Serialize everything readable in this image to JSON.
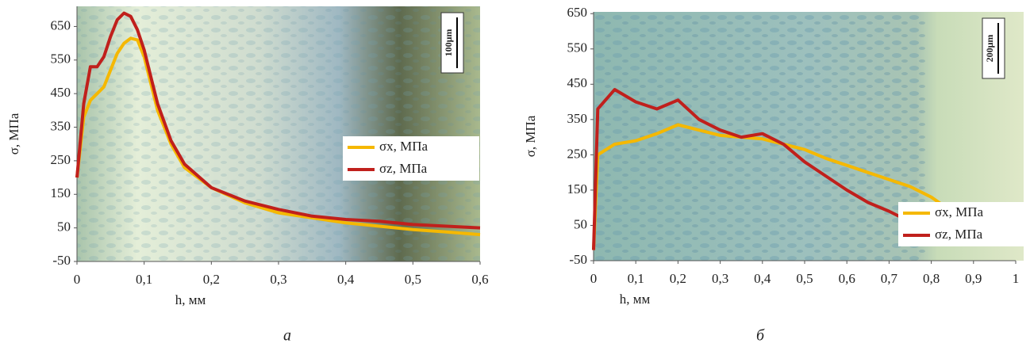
{
  "chart_data": [
    {
      "type": "line",
      "caption": "а",
      "xlabel": "h, мм",
      "ylabel": "σ, МПа",
      "annotation": "100μm",
      "x": [
        0,
        0.01,
        0.02,
        0.03,
        0.04,
        0.05,
        0.06,
        0.07,
        0.08,
        0.09,
        0.1,
        0.11,
        0.12,
        0.14,
        0.16,
        0.2,
        0.25,
        0.3,
        0.35,
        0.4,
        0.45,
        0.5,
        0.55,
        0.6
      ],
      "series": [
        {
          "name": "σx, МПа",
          "color": "#f5b800",
          "values": [
            200,
            380,
            430,
            450,
            470,
            520,
            570,
            600,
            615,
            610,
            560,
            480,
            400,
            300,
            230,
            170,
            125,
            95,
            80,
            65,
            55,
            45,
            38,
            30
          ]
        },
        {
          "name": "σz, МПа",
          "color": "#c0201c",
          "values": [
            200,
            420,
            530,
            530,
            560,
            620,
            670,
            690,
            680,
            640,
            580,
            500,
            420,
            310,
            240,
            170,
            130,
            105,
            85,
            75,
            70,
            60,
            55,
            50
          ]
        }
      ],
      "xlim": [
        0,
        0.6
      ],
      "ylim": [
        -50,
        710
      ],
      "xticks": [
        0,
        {
          "value": 0.1,
          "label": "0,1"
        },
        {
          "value": 0.2,
          "label": "0,2"
        },
        {
          "value": 0.3,
          "label": "0,3"
        },
        {
          "value": 0.4,
          "label": "0,4"
        },
        {
          "value": 0.5,
          "label": "0,5"
        },
        {
          "value": 0.6,
          "label": "0,6"
        }
      ],
      "yticks": [
        -50,
        50,
        150,
        250,
        350,
        450,
        550,
        650
      ]
    },
    {
      "type": "line",
      "caption": "б",
      "xlabel": "h, мм",
      "ylabel": "σ, МПа",
      "annotation": "200μm",
      "x": [
        0,
        0.01,
        0.05,
        0.1,
        0.15,
        0.2,
        0.25,
        0.3,
        0.35,
        0.4,
        0.45,
        0.5,
        0.55,
        0.6,
        0.65,
        0.7,
        0.75,
        0.8,
        0.83
      ],
      "series": [
        {
          "name": "σx, МПа",
          "color": "#f5b800",
          "values": [
            -20,
            250,
            280,
            290,
            310,
            335,
            320,
            305,
            300,
            295,
            280,
            265,
            240,
            220,
            200,
            180,
            160,
            130,
            105
          ]
        },
        {
          "name": "σz, МПа",
          "color": "#c0201c",
          "values": [
            -20,
            380,
            435,
            400,
            380,
            405,
            350,
            320,
            300,
            310,
            280,
            230,
            190,
            150,
            115,
            90,
            60,
            35,
            20
          ]
        }
      ],
      "xlim": [
        0,
        1
      ],
      "ylim": [
        -50,
        655
      ],
      "xticks": [
        0,
        {
          "value": 0.1,
          "label": "0,1"
        },
        {
          "value": 0.2,
          "label": "0,2"
        },
        {
          "value": 0.3,
          "label": "0,3"
        },
        {
          "value": 0.4,
          "label": "0,4"
        },
        {
          "value": 0.5,
          "label": "0,5"
        },
        {
          "value": 0.6,
          "label": "0,6"
        },
        {
          "value": 0.7,
          "label": "0,7"
        },
        {
          "value": 0.8,
          "label": "0,8"
        },
        {
          "value": 0.9,
          "label": "0,9"
        },
        1
      ],
      "yticks": [
        -50,
        50,
        150,
        250,
        350,
        450,
        550,
        650
      ]
    }
  ]
}
